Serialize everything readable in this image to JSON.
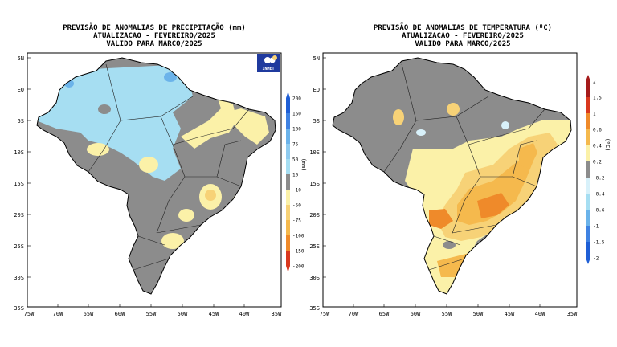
{
  "colors": {
    "grey": "#8c8c8c",
    "light_blue": "#a6def2",
    "mid_blue": "#6bb3ea",
    "deep_blue": "#1f5fd6",
    "light_yellow": "#fbf1a8",
    "yellow": "#f7d277",
    "light_orange": "#f5b94d",
    "orange": "#ef8a2a",
    "red": "#d9381e",
    "dark_red": "#a51b1b",
    "pale_cyan": "#d8f1fa"
  },
  "left_map": {
    "title_line1": "PREVISÃO DE ANOMALIAS DE PRECIPITAÇÃO (mm)",
    "title_line2": "ATUALIZACAO - FEVEREIRO/2025",
    "title_line3": "VALIDO PARA MARCO/2025",
    "logo_text": "INMET",
    "unit_label": "(mm)",
    "colorbar_labels": [
      "200",
      "150",
      "100",
      "75",
      "50",
      "10",
      "-10",
      "-50",
      "-75",
      "-100",
      "-150",
      "-200"
    ],
    "colorbar_colors": [
      "#1f5fd6",
      "#3f82e2",
      "#6bb3ea",
      "#8fcbef",
      "#a6def2",
      "#8c8c8c",
      "#fbf1a8",
      "#f7d277",
      "#f5b94d",
      "#ef8a2a",
      "#d9381e"
    ]
  },
  "right_map": {
    "title_line1": "PREVISÃO DE ANOMALIAS DE TEMPERATURA (ºC)",
    "title_line2": "ATUALIZACAO - FEVEREIRO/2025",
    "title_line3": "VALIDO PARA MARCO/2025",
    "unit_label": "(ºC)",
    "colorbar_labels": [
      "2",
      "1.5",
      "1",
      "0.6",
      "0.4",
      "0.2",
      "-0.2",
      "-0.4",
      "-0.6",
      "-1",
      "-1.5",
      "-2"
    ],
    "colorbar_colors": [
      "#a51b1b",
      "#d9381e",
      "#ef8a2a",
      "#f5b94d",
      "#fbf1a8",
      "#8c8c8c",
      "#d8f1fa",
      "#a6def2",
      "#6bb3ea",
      "#3f82e2",
      "#1f5fd6"
    ]
  },
  "lat_labels": [
    "5N",
    "EQ",
    "5S",
    "10S",
    "15S",
    "20S",
    "25S",
    "30S",
    "35S"
  ],
  "lon_labels": [
    "75W",
    "70W",
    "65W",
    "60W",
    "55W",
    "50W",
    "45W",
    "40W",
    "35W"
  ]
}
